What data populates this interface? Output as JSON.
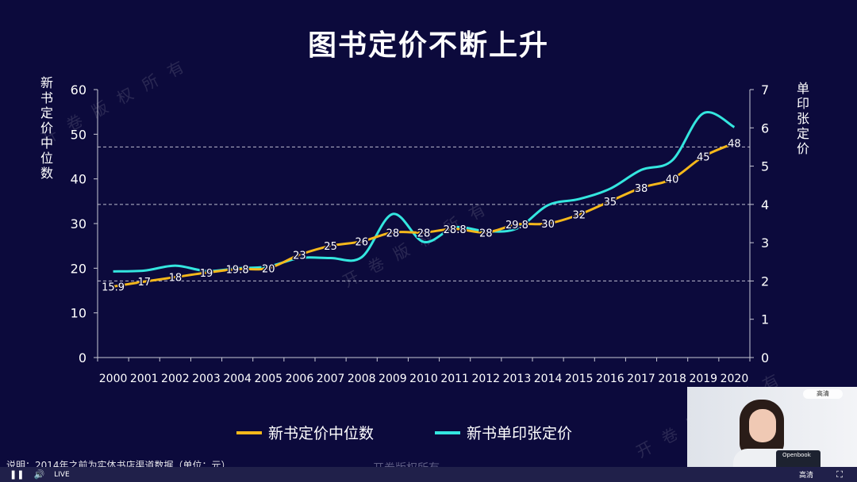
{
  "title": "图书定价不断上升",
  "ylabel_left": "新书定价中位数",
  "ylabel_right": "单印张定价",
  "note": "说明：2014年之前为实体书店渠道数据（单位：元）",
  "watermark": "开卷版权所有",
  "player": {
    "live_label": "LIVE",
    "quality_label": "高清",
    "play_pause_icon": "pause-icon",
    "volume_icon": "volume-icon",
    "fullscreen_icon": "fullscreen-icon"
  },
  "webcam": {
    "laptop_label": "Openbook"
  },
  "colors": {
    "background": "#0c0a3c",
    "series_median": "#f5b81b",
    "series_per_sheet": "#34e6df",
    "axis": "#c9c9d6",
    "grid": "#bdbdcf"
  },
  "chart_data": {
    "type": "line",
    "title": "图书定价不断上升",
    "x": [
      2000,
      2001,
      2002,
      2003,
      2004,
      2005,
      2006,
      2007,
      2008,
      2009,
      2010,
      2011,
      2012,
      2013,
      2014,
      2015,
      2016,
      2017,
      2018,
      2019,
      2020
    ],
    "x_tick_labels": [
      "2000",
      "2001",
      "2002",
      "2003",
      "2004",
      "2005",
      "2006",
      "2007",
      "2008",
      "2009",
      "2010",
      "2011",
      "2012",
      "2013",
      "2014",
      "2015",
      "2016",
      "2017",
      "2018",
      "2019",
      "2020"
    ],
    "ylabel": "新书定价中位数",
    "ylim": [
      0,
      60
    ],
    "yticks": [
      0,
      10,
      20,
      30,
      40,
      50,
      60
    ],
    "y2label": "单印张定价",
    "y2lim": [
      0,
      7
    ],
    "y2ticks": [
      0,
      1,
      2,
      3,
      4,
      5,
      6,
      7
    ],
    "grid": "dashed horizontal lines at right-axis 2, 4 and 5.5",
    "legend_position": "bottom",
    "series": [
      {
        "name": "新书定价中位数",
        "axis": "left",
        "color": "#f5b81b",
        "values": [
          15.9,
          17,
          18,
          19,
          19.8,
          20,
          23,
          25,
          26,
          28,
          28,
          28.8,
          28,
          29.8,
          30,
          32,
          35,
          38,
          40,
          45,
          48
        ],
        "data_labels": [
          "15.9",
          "17",
          "18",
          "19",
          "19.8",
          "20",
          "23",
          "25",
          "26",
          "28",
          "28",
          "28.8",
          "28",
          "29.8",
          "30",
          "32",
          "35",
          "38",
          "40",
          "45",
          "48"
        ]
      },
      {
        "name": "新书单印张定价",
        "axis": "right",
        "color": "#34e6df",
        "values": [
          2.25,
          2.27,
          2.4,
          2.26,
          2.33,
          2.38,
          2.6,
          2.6,
          2.62,
          3.75,
          3.02,
          3.4,
          3.3,
          3.37,
          3.98,
          4.14,
          4.41,
          4.9,
          5.15,
          6.38,
          6.02
        ]
      }
    ]
  }
}
